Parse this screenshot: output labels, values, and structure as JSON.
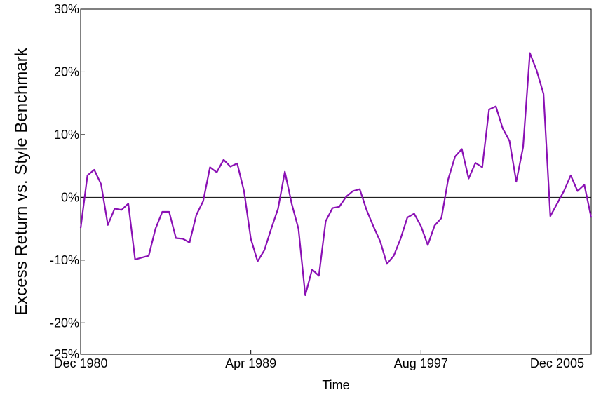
{
  "chart_data": {
    "type": "line",
    "y_label": "Excess Return vs. Style Benchmark",
    "x_label": "Time",
    "x": [
      "1980-12",
      "1981-04",
      "1981-08",
      "1981-12",
      "1982-04",
      "1982-08",
      "1982-12",
      "1983-04",
      "1983-08",
      "1983-12",
      "1984-04",
      "1984-08",
      "1984-12",
      "1985-04",
      "1985-08",
      "1985-12",
      "1986-04",
      "1986-08",
      "1986-12",
      "1987-04",
      "1987-08",
      "1987-12",
      "1988-04",
      "1988-08",
      "1988-12",
      "1989-04",
      "1989-08",
      "1989-12",
      "1990-04",
      "1990-08",
      "1990-12",
      "1991-04",
      "1991-08",
      "1991-12",
      "1992-04",
      "1992-08",
      "1992-12",
      "1993-04",
      "1993-08",
      "1993-12",
      "1994-04",
      "1994-08",
      "1994-12",
      "1995-04",
      "1995-08",
      "1995-12",
      "1996-04",
      "1996-08",
      "1996-12",
      "1997-04",
      "1997-08",
      "1998-01",
      "1998-06",
      "1998-11",
      "1999-04",
      "1999-09",
      "2000-02",
      "2000-07",
      "2000-12",
      "2001-05",
      "2001-10",
      "2002-03",
      "2002-08",
      "2003-01",
      "2003-06",
      "2003-11",
      "2004-04",
      "2004-09",
      "2005-02",
      "2005-07",
      "2005-12",
      "2006-05",
      "2006-10",
      "2007-03",
      "2007-08",
      "2008-01"
    ],
    "series": [
      {
        "color": "#8a10b4",
        "values": [
          -4.9,
          3.5,
          4.4,
          2.1,
          -4.4,
          -1.8,
          -2.0,
          -1.0,
          -9.9,
          -9.6,
          -9.3,
          -5.0,
          -2.3,
          -2.3,
          -6.5,
          -6.6,
          -7.2,
          -2.8,
          -0.6,
          4.8,
          4.0,
          6.0,
          4.9,
          5.4,
          1.0,
          -6.6,
          -10.2,
          -8.4,
          -5.0,
          -1.8,
          4.1,
          -1.0,
          -5.0,
          -15.6,
          -11.5,
          -12.5,
          -3.8,
          -1.7,
          -1.5,
          0.1,
          1.0,
          1.3,
          -2.0,
          -4.6,
          -7.0,
          -10.6,
          -9.3,
          -6.6,
          -3.2,
          -2.6,
          -4.6,
          -7.6,
          -4.5,
          -3.3,
          2.9,
          6.5,
          7.7,
          3.0,
          5.5,
          4.8,
          14.0,
          14.5,
          11.0,
          9.0,
          2.5,
          8.0,
          23.0,
          20.2,
          16.5,
          -3.0,
          -1.0,
          1.0,
          3.5,
          1.0,
          2.0,
          -3.2
        ]
      }
    ],
    "xticks": [
      {
        "value": "1980-12",
        "label": "Dec 1980"
      },
      {
        "value": "1989-04",
        "label": "Apr 1989"
      },
      {
        "value": "1997-08",
        "label": "Aug 1997"
      },
      {
        "value": "2005-12",
        "label": "Dec 2005"
      }
    ],
    "ylim": [
      -25,
      30
    ],
    "yticks": [
      {
        "value": -25,
        "label": "-25%"
      },
      {
        "value": -20,
        "label": "-20%"
      },
      {
        "value": -10,
        "label": "-10%"
      },
      {
        "value": 0,
        "label": "0%"
      },
      {
        "value": 10,
        "label": "10%"
      },
      {
        "value": 20,
        "label": "20%"
      },
      {
        "value": 30,
        "label": "30%"
      }
    ],
    "zero_line": true
  }
}
